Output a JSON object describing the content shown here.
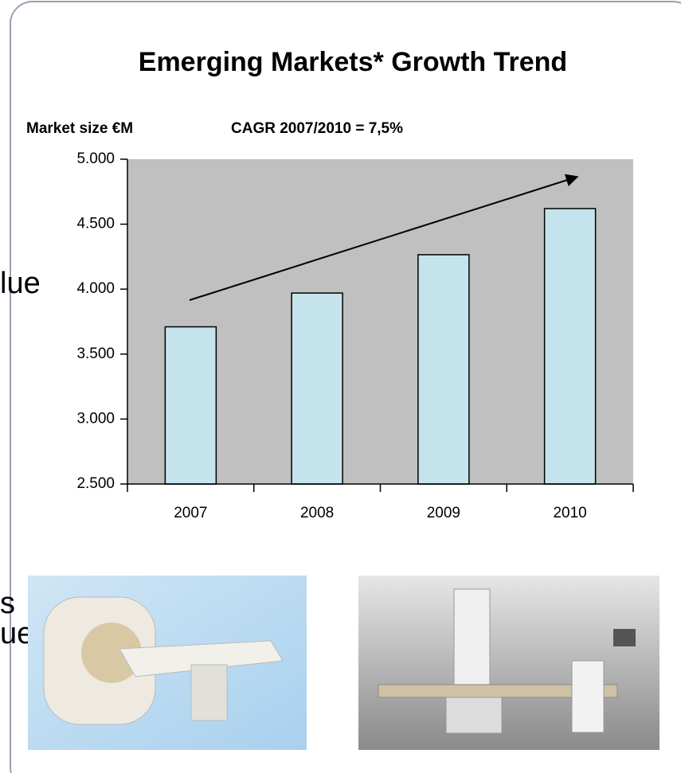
{
  "background_text": [
    "lue",
    "s",
    "ue"
  ],
  "chart_data": {
    "type": "bar",
    "title": "Emerging Markets* Growth Trend",
    "y_label": "Market size €M",
    "annotation": "CAGR 2007/2010 = 7,5%",
    "categories": [
      "2007",
      "2008",
      "2009",
      "2010"
    ],
    "values": [
      3710,
      3970,
      4265,
      4620
    ],
    "color": "#c5e3ec",
    "plot_background": "#c0c0c0",
    "ylim": [
      2500,
      5000
    ],
    "yticks": [
      {
        "value": 2500,
        "label": "2.500"
      },
      {
        "value": 3000,
        "label": "3.000"
      },
      {
        "value": 3500,
        "label": "3.500"
      },
      {
        "value": 4000,
        "label": "4.000"
      },
      {
        "value": 4500,
        "label": "4.500"
      },
      {
        "value": 5000,
        "label": "5.000"
      }
    ]
  }
}
